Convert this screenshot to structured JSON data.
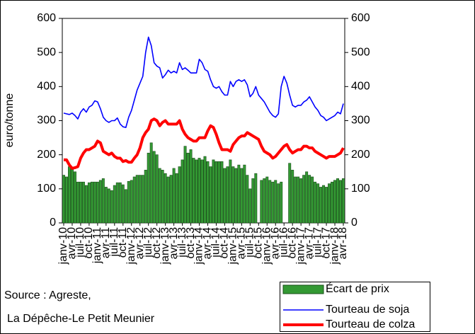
{
  "chart_data": {
    "type": "combo",
    "y_label": "euro/tonne",
    "source_lines": [
      "Source : Agreste,",
      "La Dépêche-Le Petit Meunier"
    ],
    "categories": [
      "janv-10",
      null,
      null,
      "avr-10",
      null,
      null,
      "juil-10",
      null,
      null,
      "oct-10",
      null,
      null,
      "janv-11",
      null,
      null,
      "avr-11",
      null,
      null,
      "juil-11",
      null,
      null,
      "oct-11",
      null,
      null,
      "janv-12",
      null,
      null,
      "avr-12",
      null,
      null,
      "juil-12",
      null,
      null,
      "oct-12",
      null,
      null,
      "janv-13",
      null,
      null,
      "avr-13",
      null,
      null,
      "juil-13",
      null,
      null,
      "oct-13",
      null,
      null,
      "janv-14",
      null,
      null,
      "avr-14",
      null,
      null,
      "juil-14",
      null,
      null,
      "oct-14",
      null,
      null,
      "janv-15",
      null,
      null,
      "avr-15",
      null,
      null,
      "juil-15",
      null,
      null,
      "oct-15",
      null,
      null,
      "janv-16",
      null,
      null,
      "avr-16",
      null,
      null,
      "juil-16",
      null,
      null,
      "oct-16",
      null,
      null,
      "janv-17",
      null,
      null,
      "avr-17",
      null,
      null,
      "juil-17",
      null,
      null,
      "oct-17",
      null,
      null,
      "janv-18",
      null,
      null,
      "avr-18"
    ],
    "series": [
      {
        "name": "Écart de prix",
        "type": "bar",
        "color": "#339933",
        "values": [
          140,
          135,
          165,
          160,
          150,
          120,
          120,
          120,
          110,
          118,
          120,
          120,
          120,
          125,
          130,
          105,
          100,
          95,
          110,
          118,
          118,
          112,
          98,
          122,
          125,
          135,
          140,
          140,
          140,
          155,
          205,
          235,
          210,
          200,
          160,
          155,
          145,
          135,
          140,
          160,
          145,
          165,
          185,
          225,
          205,
          215,
          190,
          185,
          190,
          185,
          195,
          180,
          165,
          185,
          180,
          180,
          180,
          160,
          165,
          185,
          165,
          160,
          170,
          160,
          170,
          140,
          100,
          130,
          145,
          null,
          125,
          130,
          135,
          125,
          120,
          125,
          115,
          120,
          null,
          null,
          175,
          155,
          135,
          135,
          130,
          140,
          150,
          140,
          135,
          120,
          115,
          105,
          110,
          105,
          115,
          120,
          125,
          130,
          125,
          130
        ]
      },
      {
        "name": "Tourteau de soja",
        "type": "line",
        "color": "#0000ff",
        "values": [
          322,
          320,
          318,
          322,
          315,
          305,
          325,
          335,
          325,
          340,
          345,
          358,
          355,
          335,
          310,
          300,
          295,
          300,
          300,
          308,
          290,
          282,
          280,
          310,
          330,
          360,
          390,
          410,
          430,
          500,
          545,
          520,
          470,
          460,
          455,
          425,
          435,
          448,
          440,
          445,
          440,
          470,
          450,
          455,
          448,
          440,
          440,
          440,
          480,
          470,
          450,
          445,
          420,
          400,
          395,
          400,
          385,
          375,
          375,
          415,
          400,
          415,
          420,
          415,
          420,
          405,
          370,
          380,
          400,
          375,
          365,
          355,
          340,
          325,
          315,
          310,
          320,
          400,
          430,
          410,
          375,
          345,
          340,
          345,
          345,
          355,
          360,
          370,
          355,
          340,
          330,
          315,
          310,
          300,
          305,
          310,
          315,
          325,
          320,
          350
        ]
      },
      {
        "name": "Tourteau de colza",
        "type": "line",
        "color": "#ff0000",
        "values": [
          185,
          185,
          170,
          160,
          162,
          165,
          190,
          205,
          215,
          215,
          220,
          225,
          240,
          235,
          210,
          205,
          200,
          205,
          195,
          190,
          190,
          180,
          183,
          178,
          178,
          190,
          200,
          220,
          250,
          265,
          275,
          300,
          305,
          300,
          285,
          295,
          300,
          290,
          290,
          290,
          290,
          300,
          275,
          260,
          250,
          245,
          240,
          240,
          250,
          250,
          250,
          270,
          285,
          280,
          260,
          235,
          215,
          215,
          215,
          210,
          230,
          240,
          250,
          255,
          255,
          265,
          260,
          255,
          250,
          245,
          225,
          210,
          205,
          200,
          190,
          195,
          205,
          215,
          225,
          230,
          215,
          205,
          210,
          215,
          215,
          225,
          225,
          220,
          220,
          210,
          205,
          200,
          195,
          190,
          195,
          195,
          195,
          200,
          205,
          220
        ]
      }
    ],
    "ylim": [
      0,
      600
    ],
    "yticks": [
      0,
      100,
      200,
      300,
      400,
      500,
      600
    ],
    "y2lim": [
      0,
      600
    ],
    "y2ticks": [
      0,
      100,
      200,
      300,
      400,
      500,
      600
    ],
    "grid": false
  }
}
